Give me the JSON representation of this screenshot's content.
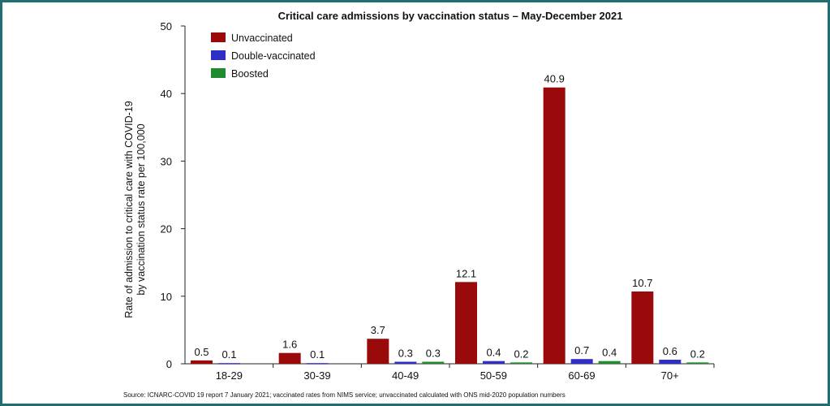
{
  "chart_data": {
    "type": "bar",
    "title": "Critical care admissions by vaccination status – May-December 2021",
    "ylabel_line1": "Rate of admission to critical care with COVID-19",
    "ylabel_line2": "by vaccination status rate per 100,000",
    "xlabel": "",
    "ylim": [
      0,
      50
    ],
    "yticks": [
      0,
      10,
      20,
      30,
      40,
      50
    ],
    "categories": [
      "18-29",
      "30-39",
      "40-49",
      "50-59",
      "60-69",
      "70+"
    ],
    "series": [
      {
        "name": "Unvaccinated",
        "color": "#9b0a0a",
        "values": [
          0.5,
          1.6,
          3.7,
          12.1,
          40.9,
          10.7
        ]
      },
      {
        "name": "Double-vaccinated",
        "color": "#2f2fc8",
        "values": [
          0.1,
          0.1,
          0.3,
          0.4,
          0.7,
          0.6
        ]
      },
      {
        "name": "Boosted",
        "color": "#1f8a2e",
        "values": [
          null,
          null,
          0.3,
          0.2,
          0.4,
          0.2
        ]
      }
    ],
    "data_labels": [
      [
        "0.5",
        "1.6",
        "3.7",
        "12.1",
        "40.9",
        "10.7"
      ],
      [
        "0.1",
        "0.1",
        "0.3",
        "0.4",
        "0.7",
        "0.6"
      ],
      [
        "",
        "",
        "0.3",
        "0.2",
        "0.4",
        "0.2"
      ]
    ],
    "legend_position": "top-left",
    "grid": false,
    "source": "Source: ICNARC-COVID 19 report 7 January 2021; vaccinated rates from NIMS service; unvaccinated calculated with ONS mid-2020 population numbers"
  }
}
